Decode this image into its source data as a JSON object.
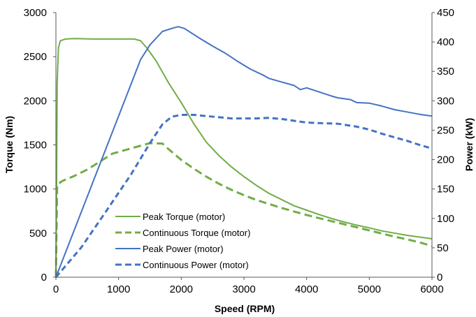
{
  "chart_data": {
    "type": "line",
    "xlabel": "Speed (RPM)",
    "ylabel_left": "Torque (Nm)",
    "ylabel_right": "Power (kW)",
    "xlim": [
      0,
      6000
    ],
    "ylim_left": [
      0,
      3000
    ],
    "ylim_right": [
      0,
      450
    ],
    "x_ticks": [
      "0",
      "1000",
      "2000",
      "3000",
      "4000",
      "5000",
      "6000"
    ],
    "y_left_ticks": [
      "0",
      "500",
      "1000",
      "1500",
      "2000",
      "2500",
      "3000"
    ],
    "y_right_ticks": [
      "0",
      "50",
      "100",
      "150",
      "200",
      "250",
      "300",
      "350",
      "400",
      "450"
    ],
    "grid": false,
    "legend_position": "bottom-left",
    "series": [
      {
        "name": "Peak Torque (motor)",
        "axis": "left",
        "color": "#70AD47",
        "dash": "solid",
        "points": [
          [
            0,
            0
          ],
          [
            10,
            1000
          ],
          [
            20,
            2200
          ],
          [
            40,
            2600
          ],
          [
            70,
            2680
          ],
          [
            150,
            2700
          ],
          [
            300,
            2705
          ],
          [
            600,
            2700
          ],
          [
            1000,
            2700
          ],
          [
            1250,
            2700
          ],
          [
            1350,
            2680
          ],
          [
            1450,
            2600
          ],
          [
            1600,
            2450
          ],
          [
            1800,
            2200
          ],
          [
            2000,
            1980
          ],
          [
            2200,
            1740
          ],
          [
            2400,
            1530
          ],
          [
            2600,
            1380
          ],
          [
            2800,
            1250
          ],
          [
            3000,
            1140
          ],
          [
            3200,
            1040
          ],
          [
            3400,
            950
          ],
          [
            3600,
            880
          ],
          [
            3800,
            810
          ],
          [
            4000,
            760
          ],
          [
            4200,
            710
          ],
          [
            4400,
            665
          ],
          [
            4600,
            625
          ],
          [
            4800,
            590
          ],
          [
            5000,
            560
          ],
          [
            5200,
            525
          ],
          [
            5400,
            500
          ],
          [
            5600,
            475
          ],
          [
            5800,
            455
          ],
          [
            6000,
            435
          ]
        ]
      },
      {
        "name": "Continuous Torque (motor)",
        "axis": "left",
        "color": "#70AD47",
        "dash": "dashed",
        "points": [
          [
            0,
            0
          ],
          [
            20,
            1050
          ],
          [
            100,
            1090
          ],
          [
            300,
            1150
          ],
          [
            500,
            1220
          ],
          [
            700,
            1310
          ],
          [
            900,
            1400
          ],
          [
            1100,
            1440
          ],
          [
            1300,
            1480
          ],
          [
            1500,
            1520
          ],
          [
            1700,
            1515
          ],
          [
            1800,
            1450
          ],
          [
            2000,
            1330
          ],
          [
            2200,
            1230
          ],
          [
            2400,
            1140
          ],
          [
            2600,
            1060
          ],
          [
            2800,
            990
          ],
          [
            3000,
            930
          ],
          [
            3200,
            875
          ],
          [
            3400,
            830
          ],
          [
            3600,
            785
          ],
          [
            3800,
            745
          ],
          [
            4000,
            705
          ],
          [
            4200,
            670
          ],
          [
            4400,
            635
          ],
          [
            4600,
            600
          ],
          [
            4800,
            565
          ],
          [
            5000,
            530
          ],
          [
            5200,
            495
          ],
          [
            5400,
            460
          ],
          [
            5600,
            430
          ],
          [
            5800,
            395
          ],
          [
            6000,
            355
          ]
        ]
      },
      {
        "name": "Peak Power (motor)",
        "axis": "right",
        "color": "#4472C4",
        "dash": "solid",
        "points": [
          [
            0,
            0
          ],
          [
            1350,
            370
          ],
          [
            1500,
            395
          ],
          [
            1700,
            418
          ],
          [
            1850,
            423
          ],
          [
            1950,
            426
          ],
          [
            2050,
            423
          ],
          [
            2150,
            416
          ],
          [
            2300,
            406
          ],
          [
            2500,
            393
          ],
          [
            2700,
            381
          ],
          [
            2900,
            367
          ],
          [
            3100,
            354
          ],
          [
            3300,
            344
          ],
          [
            3400,
            338
          ],
          [
            3600,
            332
          ],
          [
            3800,
            326
          ],
          [
            3900,
            319
          ],
          [
            4000,
            322
          ],
          [
            4200,
            315
          ],
          [
            4400,
            308
          ],
          [
            4500,
            305
          ],
          [
            4700,
            302
          ],
          [
            4800,
            297
          ],
          [
            5000,
            296
          ],
          [
            5200,
            291
          ],
          [
            5400,
            285
          ],
          [
            5600,
            281
          ],
          [
            5800,
            277
          ],
          [
            6000,
            274
          ]
        ]
      },
      {
        "name": "Continuous Power (motor)",
        "axis": "right",
        "color": "#4472C4",
        "dash": "dashed",
        "points": [
          [
            0,
            0
          ],
          [
            400,
            50
          ],
          [
            800,
            112
          ],
          [
            1200,
            175
          ],
          [
            1500,
            228
          ],
          [
            1700,
            260
          ],
          [
            1850,
            273
          ],
          [
            2000,
            276
          ],
          [
            2200,
            276
          ],
          [
            2400,
            274
          ],
          [
            2600,
            272
          ],
          [
            2800,
            270
          ],
          [
            3000,
            270
          ],
          [
            3200,
            270
          ],
          [
            3400,
            271
          ],
          [
            3600,
            269
          ],
          [
            3800,
            266
          ],
          [
            4000,
            263
          ],
          [
            4200,
            262
          ],
          [
            4500,
            261
          ],
          [
            4800,
            256
          ],
          [
            5000,
            251
          ],
          [
            5200,
            244
          ],
          [
            5400,
            238
          ],
          [
            5600,
            232
          ],
          [
            5800,
            225
          ],
          [
            6000,
            219
          ]
        ]
      }
    ]
  }
}
